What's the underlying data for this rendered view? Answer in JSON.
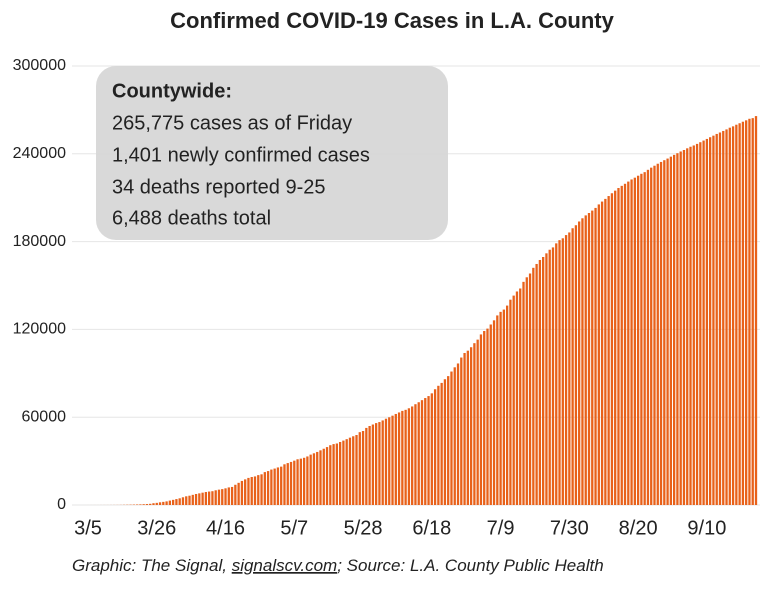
{
  "chart_data": {
    "type": "bar",
    "title": "Confirmed COVID-19 Cases in L.A. County",
    "annotation": {
      "title": "Countywide:",
      "lines": [
        "265,775 cases as of Friday",
        "1,401 newly confirmed cases",
        "34 deaths reported 9-25",
        "6,488 deaths total"
      ]
    },
    "source": [
      "Graphic: The Signal, ",
      "signalscv.com",
      "; Source: L.A. County Public Health"
    ],
    "color": "#e8611a",
    "ylim": [
      0,
      300000
    ],
    "yticks": [
      0,
      60000,
      120000,
      180000,
      240000,
      300000
    ],
    "grid": true,
    "categories": [
      "3/5",
      null,
      null,
      null,
      null,
      null,
      null,
      null,
      null,
      null,
      null,
      null,
      null,
      null,
      null,
      null,
      null,
      null,
      null,
      null,
      null,
      "3/26",
      null,
      null,
      null,
      null,
      null,
      null,
      null,
      null,
      null,
      null,
      null,
      null,
      null,
      null,
      null,
      null,
      null,
      null,
      null,
      null,
      "4/16",
      null,
      null,
      null,
      null,
      null,
      null,
      null,
      null,
      null,
      null,
      null,
      null,
      null,
      null,
      null,
      null,
      null,
      null,
      null,
      null,
      "5/7",
      null,
      null,
      null,
      null,
      null,
      null,
      null,
      null,
      null,
      null,
      null,
      null,
      null,
      null,
      null,
      null,
      null,
      null,
      null,
      null,
      "5/28",
      null,
      null,
      null,
      null,
      null,
      null,
      null,
      null,
      null,
      null,
      null,
      null,
      null,
      null,
      null,
      null,
      null,
      null,
      null,
      null,
      "6/18",
      null,
      null,
      null,
      null,
      null,
      null,
      null,
      null,
      null,
      null,
      null,
      null,
      null,
      null,
      null,
      null,
      null,
      null,
      null,
      null,
      "7/9",
      null,
      null,
      null,
      null,
      null,
      null,
      null,
      null,
      null,
      null,
      null,
      null,
      null,
      null,
      null,
      null,
      null,
      null,
      null,
      null,
      "7/30",
      null,
      null,
      null,
      null,
      null,
      null,
      null,
      null,
      null,
      null,
      null,
      null,
      null,
      null,
      null,
      null,
      null,
      null,
      null,
      null,
      "8/20",
      null,
      null,
      null,
      null,
      null,
      null,
      null,
      null,
      null,
      null,
      null,
      null,
      null,
      null,
      null,
      null,
      null,
      null,
      null,
      null,
      "9/10",
      null,
      null,
      null,
      null,
      null,
      null,
      null,
      null,
      null,
      null,
      null,
      null,
      null,
      null,
      null
    ],
    "values": [
      7,
      11,
      13,
      14,
      20,
      27,
      32,
      40,
      53,
      69,
      94,
      144,
      190,
      231,
      292,
      351,
      421,
      536,
      662,
      812,
      1216,
      1465,
      1829,
      2136,
      2474,
      3011,
      3518,
      4045,
      4566,
      5277,
      5940,
      6360,
      6936,
      7530,
      7955,
      8430,
      8873,
      9192,
      9420,
      10047,
      10496,
      10854,
      11391,
      12021,
      12341,
      13823,
      15153,
      16447,
      17508,
      18517,
      19133,
      19528,
      20417,
      20976,
      22485,
      23182,
      24215,
      24894,
      25662,
      26217,
      27815,
      28644,
      29427,
      30296,
      31241,
      31677,
      32258,
      33180,
      34428,
      35329,
      36259,
      37360,
      38451,
      39573,
      40857,
      41616,
      42037,
      43052,
      44014,
      44988,
      46018,
      46969,
      47822,
      49774,
      50567,
      52677,
      53994,
      54996,
      55968,
      56676,
      57791,
      58971,
      59934,
      61046,
      62210,
      63244,
      64313,
      65034,
      66094,
      67344,
      68875,
      70224,
      71644,
      73086,
      74436,
      76300,
      79106,
      81465,
      83431,
      85942,
      88074,
      91200,
      94089,
      96719,
      100772,
      103879,
      105460,
      107811,
      110583,
      113011,
      116562,
      118898,
      120539,
      123357,
      126197,
      129549,
      131981,
      133549,
      136278,
      140307,
      143102,
      145918,
      147952,
      152497,
      155604,
      158200,
      162085,
      164710,
      167434,
      169474,
      171978,
      174435,
      176034,
      178803,
      180997,
      182253,
      184457,
      186258,
      189119,
      191185,
      193740,
      195926,
      197912,
      199541,
      201199,
      203016,
      205409,
      207356,
      209188,
      211134,
      213037,
      214821,
      216620,
      218096,
      219502,
      221024,
      222462,
      223683,
      225022,
      226333,
      227459,
      229051,
      230536,
      231853,
      233214,
      234428,
      235621,
      236743,
      238051,
      239272,
      240396,
      241573,
      242601,
      243748,
      244820,
      245701,
      246773,
      247912,
      249046,
      250158,
      251318,
      252401,
      253578,
      254561,
      255613,
      256671,
      257844,
      258766,
      259881,
      260877,
      261925,
      262875,
      263930,
      264374,
      265775
    ]
  }
}
